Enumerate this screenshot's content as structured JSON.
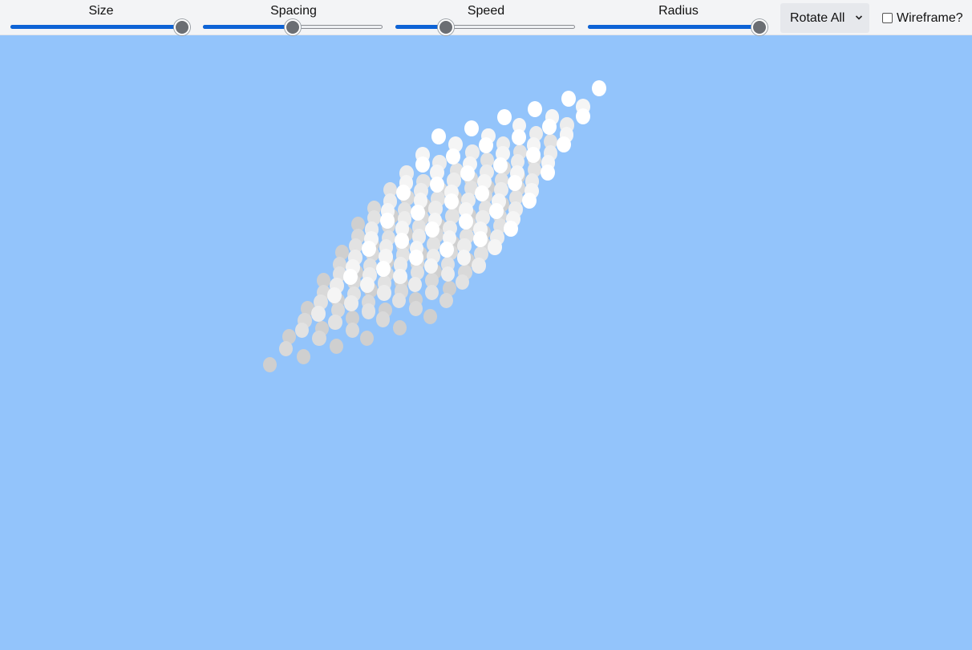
{
  "toolbar": {
    "sliders": [
      {
        "label": "Size",
        "value": 0.955
      },
      {
        "label": "Spacing",
        "value": 0.5
      },
      {
        "label": "Speed",
        "value": 0.283
      },
      {
        "label": "Radius",
        "value": 0.955
      }
    ],
    "mode_select": {
      "selected": "Rotate All"
    },
    "wireframe": {
      "label": "Wireframe?",
      "checked": false
    }
  },
  "scene": {
    "background": "#93c4fb",
    "front_dot_color": "#ffffff",
    "back_dot_color": "#cfcfcf",
    "grid": {
      "cols": 6,
      "rows": 6,
      "layers": 6
    }
  }
}
